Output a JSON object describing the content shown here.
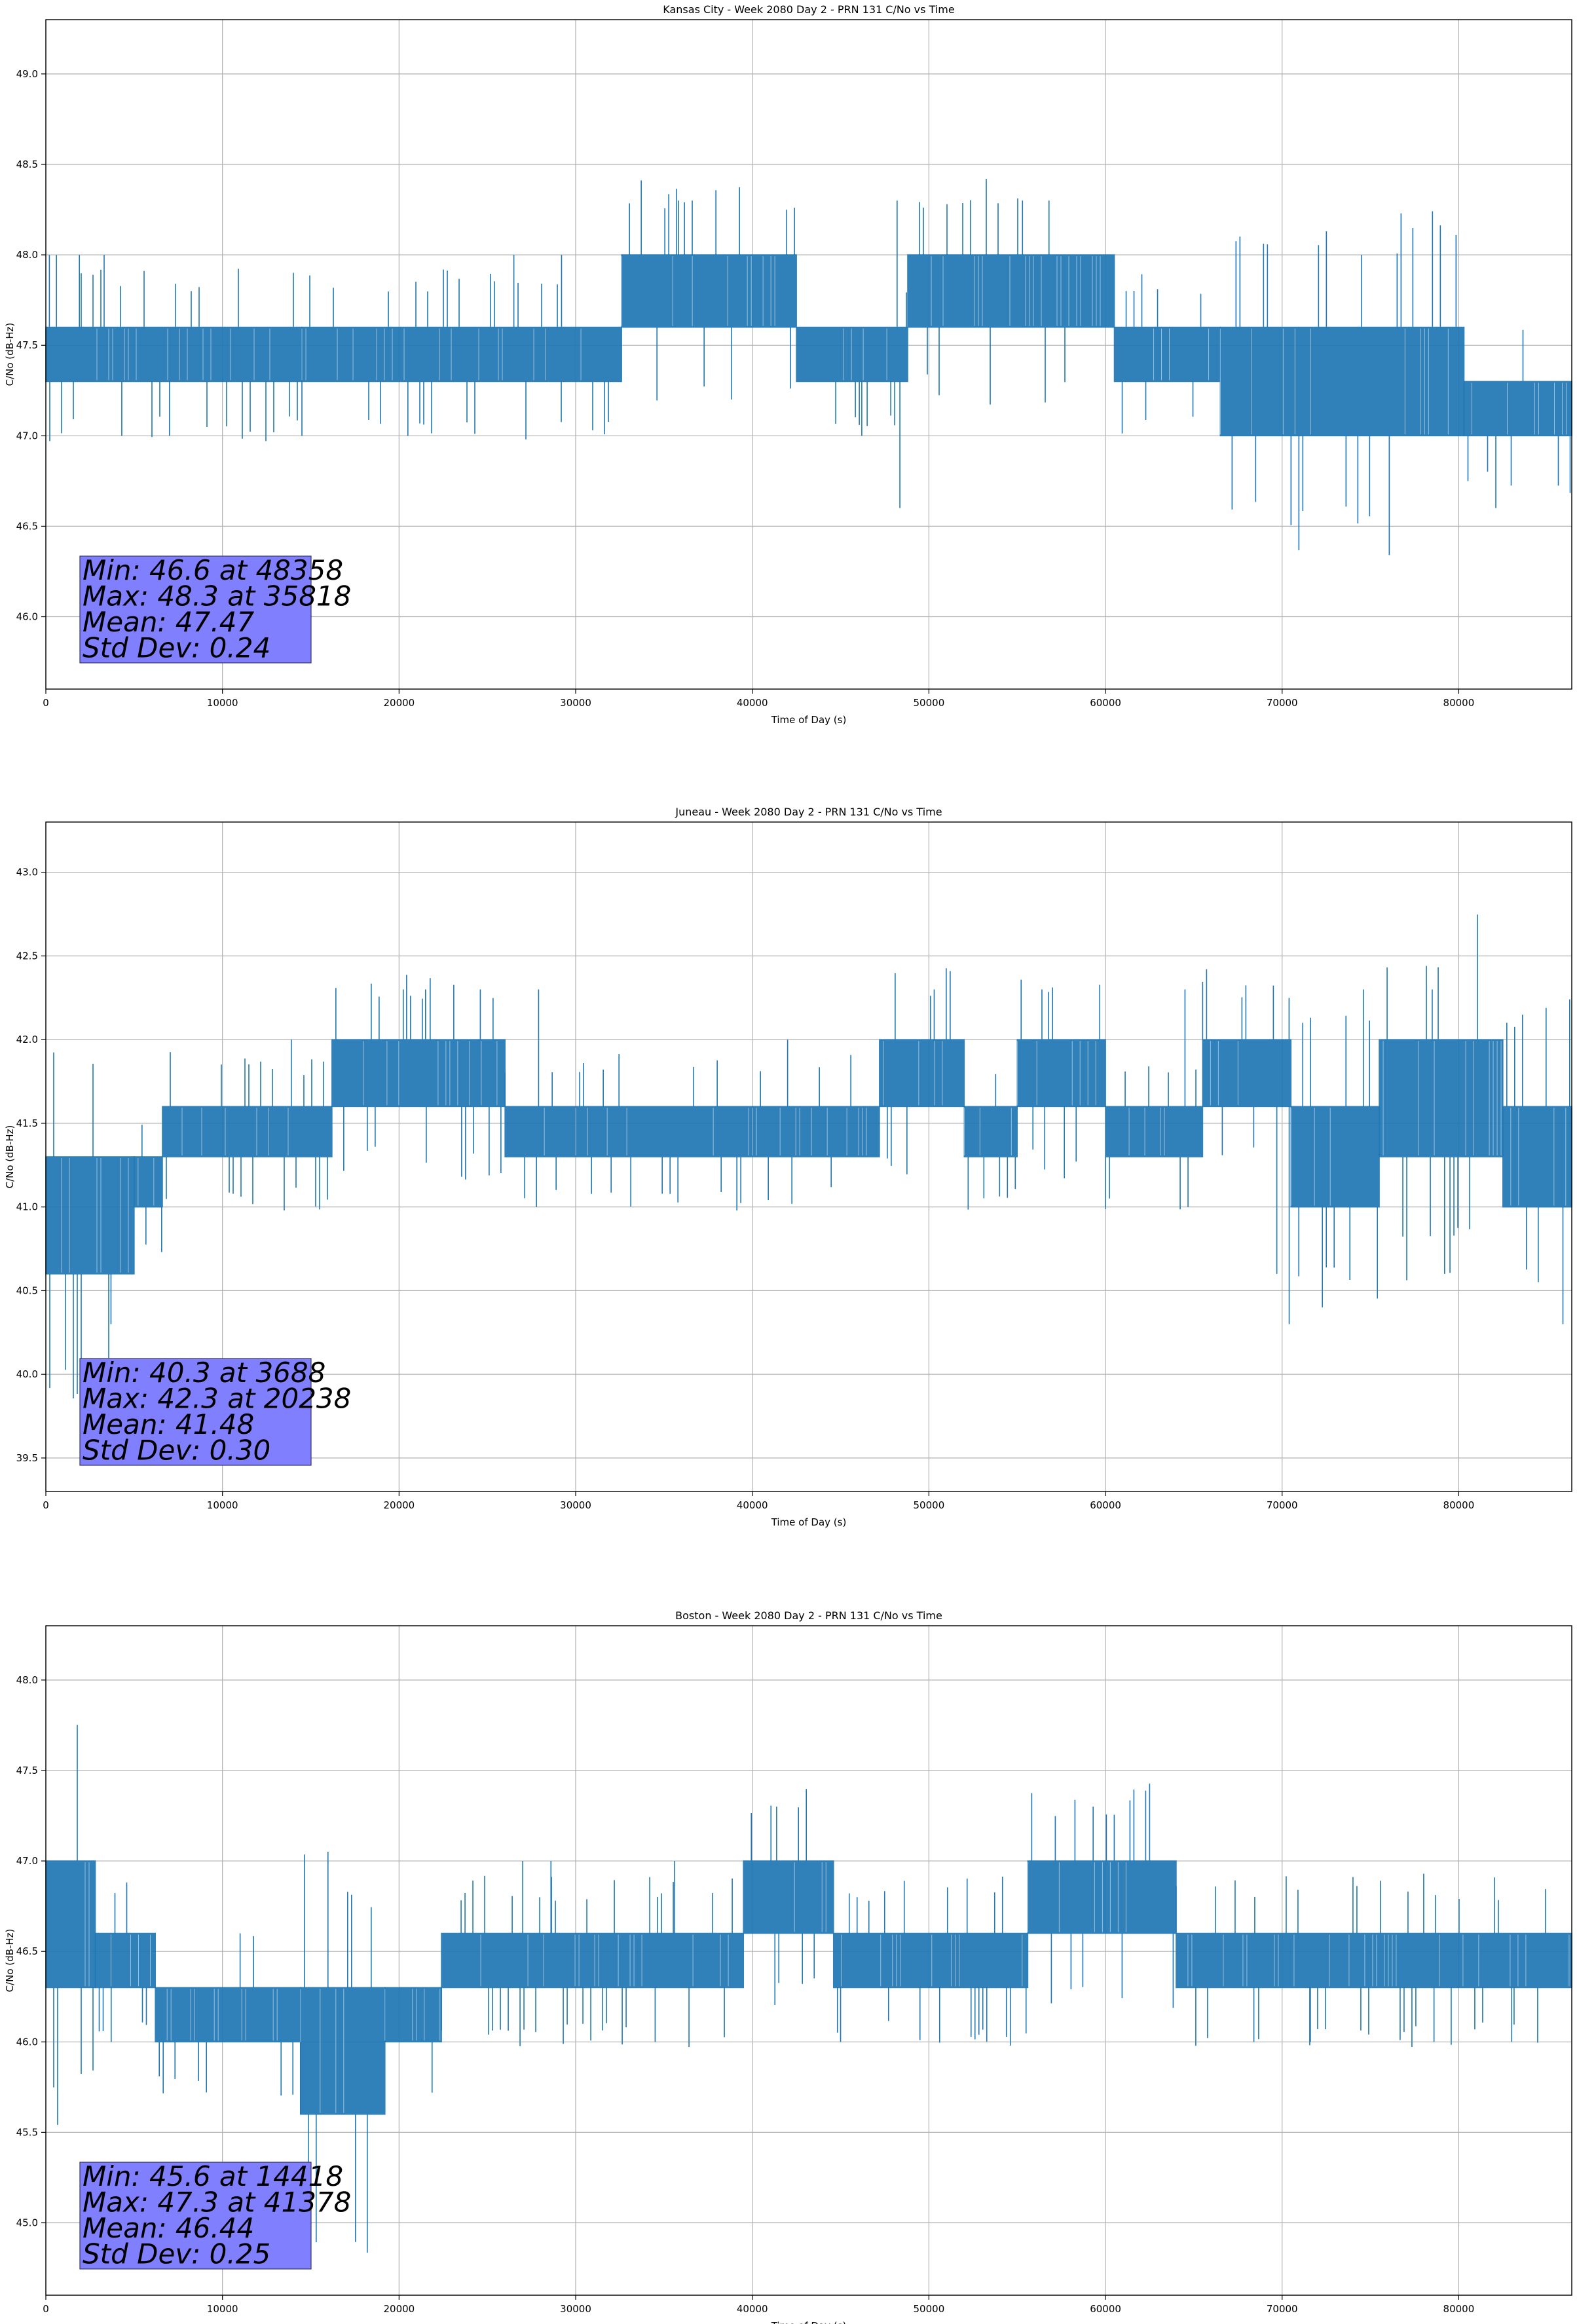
{
  "colors": {
    "series": "#1f77b4",
    "stats_box": "#8080ff",
    "grid": "#b0b0b0"
  },
  "chart_data": [
    {
      "type": "line",
      "title": "Kansas City - Week 2080 Day 2 - PRN 131 C/No vs Time",
      "xlabel": "Time of Day (s)",
      "ylabel": "C/No (dB-Hz)",
      "xlim": [
        0,
        86400
      ],
      "ylim": [
        45.6,
        49.3
      ],
      "xticks": [
        0,
        10000,
        20000,
        30000,
        40000,
        50000,
        60000,
        70000,
        80000
      ],
      "yticks": [
        46.0,
        46.5,
        47.0,
        47.5,
        48.0,
        48.5,
        49.0
      ],
      "grid": true,
      "stats": [
        "Min: 46.6 at 48358",
        "Max: 48.3 at 35818",
        "Mean: 47.47",
        "Std Dev: 0.24"
      ],
      "series": [
        {
          "band_segments": [
            {
              "x": [
                0,
                14500
              ],
              "low": 47.3,
              "high": 47.6
            },
            {
              "x": [
                14500,
                32600
              ],
              "low": 47.3,
              "high": 47.6
            },
            {
              "x": [
                32600,
                42500
              ],
              "low": 47.6,
              "high": 48.0
            },
            {
              "x": [
                42500,
                48800
              ],
              "low": 47.3,
              "high": 47.6
            },
            {
              "x": [
                48800,
                60500
              ],
              "low": 47.6,
              "high": 48.0
            },
            {
              "x": [
                60500,
                66500
              ],
              "low": 47.3,
              "high": 47.6
            },
            {
              "x": [
                66500,
                80300
              ],
              "low": 47.0,
              "high": 47.6
            },
            {
              "x": [
                80300,
                86400
              ],
              "low": 47.0,
              "high": 47.3
            }
          ],
          "spikes": [
            {
              "x": 200,
              "y": 48.0
            },
            {
              "x": 600,
              "y": 48.0
            },
            {
              "x": 1900,
              "y": 48.0
            },
            {
              "x": 3300,
              "y": 48.0
            },
            {
              "x": 4300,
              "y": 47.0
            },
            {
              "x": 7000,
              "y": 47.0
            },
            {
              "x": 14500,
              "y": 47.0
            },
            {
              "x": 20500,
              "y": 47.0
            },
            {
              "x": 26500,
              "y": 48.0
            },
            {
              "x": 29200,
              "y": 48.0
            },
            {
              "x": 35818,
              "y": 48.3
            },
            {
              "x": 36600,
              "y": 48.3
            },
            {
              "x": 46200,
              "y": 47.0
            },
            {
              "x": 48358,
              "y": 46.6
            },
            {
              "x": 48200,
              "y": 48.3
            },
            {
              "x": 55300,
              "y": 48.3
            },
            {
              "x": 56800,
              "y": 48.3
            },
            {
              "x": 74500,
              "y": 48.0
            },
            {
              "x": 82100,
              "y": 46.6
            }
          ]
        }
      ]
    },
    {
      "type": "line",
      "title": "Juneau - Week 2080 Day 2 - PRN 131 C/No vs Time",
      "xlabel": "Time of Day (s)",
      "ylabel": "C/No (dB-Hz)",
      "xlim": [
        0,
        86400
      ],
      "ylim": [
        39.3,
        43.3
      ],
      "xticks": [
        0,
        10000,
        20000,
        30000,
        40000,
        50000,
        60000,
        70000,
        80000
      ],
      "yticks": [
        39.5,
        40.0,
        40.5,
        41.0,
        41.5,
        42.0,
        42.5,
        43.0
      ],
      "grid": true,
      "stats": [
        "Min: 40.3 at 3688",
        "Max: 42.3 at 20238",
        "Mean: 41.48",
        "Std Dev: 0.30"
      ],
      "series": [
        {
          "band_segments": [
            {
              "x": [
                0,
                5000
              ],
              "low": 40.6,
              "high": 41.3
            },
            {
              "x": [
                5000,
                6600
              ],
              "low": 41.0,
              "high": 41.3
            },
            {
              "x": [
                6600,
                16200
              ],
              "low": 41.3,
              "high": 41.6
            },
            {
              "x": [
                16200,
                26000
              ],
              "low": 41.6,
              "high": 42.0
            },
            {
              "x": [
                26000,
                47200
              ],
              "low": 41.3,
              "high": 41.6
            },
            {
              "x": [
                47200,
                52000
              ],
              "low": 41.6,
              "high": 42.0
            },
            {
              "x": [
                52000,
                55000
              ],
              "low": 41.3,
              "high": 41.6
            },
            {
              "x": [
                55000,
                60000
              ],
              "low": 41.6,
              "high": 42.0
            },
            {
              "x": [
                60000,
                65500
              ],
              "low": 41.3,
              "high": 41.6
            },
            {
              "x": [
                65500,
                70500
              ],
              "low": 41.6,
              "high": 42.0
            },
            {
              "x": [
                70500,
                75500
              ],
              "low": 41.0,
              "high": 41.6
            },
            {
              "x": [
                75500,
                82500
              ],
              "low": 41.3,
              "high": 42.0
            },
            {
              "x": [
                82500,
                86400
              ],
              "low": 41.0,
              "high": 41.6
            }
          ],
          "spikes": [
            {
              "x": 3688,
              "y": 40.3
            },
            {
              "x": 13900,
              "y": 42.0
            },
            {
              "x": 20238,
              "y": 42.3
            },
            {
              "x": 21500,
              "y": 42.3
            },
            {
              "x": 24600,
              "y": 42.3
            },
            {
              "x": 27900,
              "y": 42.3
            },
            {
              "x": 42000,
              "y": 42.0
            },
            {
              "x": 50300,
              "y": 42.3
            },
            {
              "x": 56400,
              "y": 42.3
            },
            {
              "x": 64500,
              "y": 42.3
            },
            {
              "x": 69700,
              "y": 40.6
            },
            {
              "x": 70400,
              "y": 40.3
            },
            {
              "x": 74600,
              "y": 42.3
            },
            {
              "x": 78500,
              "y": 42.3
            },
            {
              "x": 79200,
              "y": 40.6
            },
            {
              "x": 85900,
              "y": 40.3
            }
          ]
        }
      ]
    },
    {
      "type": "line",
      "title": "Boston - Week 2080 Day 2 - PRN 131 C/No vs Time",
      "xlabel": "Time of Day (s)",
      "ylabel": "C/No (dB-Hz)",
      "xlim": [
        0,
        86400
      ],
      "ylim": [
        44.6,
        48.3
      ],
      "xticks": [
        0,
        10000,
        20000,
        30000,
        40000,
        50000,
        60000,
        70000,
        80000
      ],
      "yticks": [
        45.0,
        45.5,
        46.0,
        46.5,
        47.0,
        47.5,
        48.0
      ],
      "grid": true,
      "stats": [
        "Min: 45.6 at 14418",
        "Max: 47.3 at 41378",
        "Mean: 46.44",
        "Std Dev: 0.25"
      ],
      "series": [
        {
          "band_segments": [
            {
              "x": [
                0,
                2800
              ],
              "low": 46.3,
              "high": 47.0
            },
            {
              "x": [
                2800,
                6200
              ],
              "low": 46.3,
              "high": 46.6
            },
            {
              "x": [
                6200,
                14418
              ],
              "low": 46.0,
              "high": 46.3
            },
            {
              "x": [
                14418,
                19200
              ],
              "low": 45.6,
              "high": 46.3
            },
            {
              "x": [
                19200,
                22400
              ],
              "low": 46.0,
              "high": 46.3
            },
            {
              "x": [
                22400,
                39500
              ],
              "low": 46.3,
              "high": 46.6
            },
            {
              "x": [
                39500,
                44600
              ],
              "low": 46.6,
              "high": 47.0
            },
            {
              "x": [
                44600,
                55600
              ],
              "low": 46.3,
              "high": 46.6
            },
            {
              "x": [
                55600,
                64000
              ],
              "low": 46.6,
              "high": 47.0
            },
            {
              "x": [
                64000,
                86400
              ],
              "low": 46.3,
              "high": 46.6
            }
          ],
          "spikes": [
            {
              "x": 3700,
              "y": 46.0
            },
            {
              "x": 11000,
              "y": 46.6
            },
            {
              "x": 14418,
              "y": 45.6
            },
            {
              "x": 27000,
              "y": 47.0
            },
            {
              "x": 28600,
              "y": 47.0
            },
            {
              "x": 34500,
              "y": 46.0
            },
            {
              "x": 35600,
              "y": 47.0
            },
            {
              "x": 41378,
              "y": 47.3
            },
            {
              "x": 45000,
              "y": 46.0
            },
            {
              "x": 59300,
              "y": 47.3
            },
            {
              "x": 68400,
              "y": 46.0
            },
            {
              "x": 71600,
              "y": 46.0
            },
            {
              "x": 78600,
              "y": 46.0
            },
            {
              "x": 83000,
              "y": 46.0
            }
          ]
        }
      ]
    }
  ]
}
